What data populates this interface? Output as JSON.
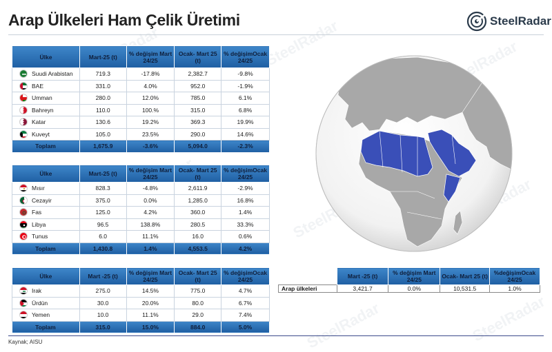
{
  "title": "Arap Ülkeleri Ham Çelik Üretimi",
  "brand": "SteelRadar",
  "watermark": "SteelRadar",
  "source": "Kaynak; AISU",
  "headers": {
    "country": "Ülke",
    "mart": "Mart-25 (t)",
    "change": "% değişim Mart 24/25",
    "ocak": "Ocak- Mart 25 (t)",
    "change_ocak": "% değişimOcak 24/25"
  },
  "table1": {
    "rows": [
      {
        "country": "Suudi Arabistan",
        "flag": "saudi-flag-icon",
        "mart": "719.3",
        "change": "-17.8%",
        "ocak": "2,382.7",
        "change_ocak": "-9.8%"
      },
      {
        "country": "BAE",
        "flag": "uae-flag-icon",
        "mart": "331.0",
        "change": "4.0%",
        "ocak": "952.0",
        "change_ocak": "-1.9%"
      },
      {
        "country": "Umman",
        "flag": "oman-flag-icon",
        "mart": "280.0",
        "change": "12.0%",
        "ocak": "785.0",
        "change_ocak": "6.1%"
      },
      {
        "country": "Bahreyn",
        "flag": "bahrain-flag-icon",
        "mart": "110.0",
        "change": "100.%",
        "ocak": "315.0",
        "change_ocak": "6.8%"
      },
      {
        "country": "Katar",
        "flag": "qatar-flag-icon",
        "mart": "130.6",
        "change": "19.2%",
        "ocak": "369.3",
        "change_ocak": "19.9%"
      },
      {
        "country": "Kuveyt",
        "flag": "kuwait-flag-icon",
        "mart": "105.0",
        "change": "23.5%",
        "ocak": "290.0",
        "change_ocak": "14.6%"
      }
    ],
    "total": {
      "country": "Toplam",
      "mart": "1,675.9",
      "change": "-3.6%",
      "ocak": "5,094.0",
      "change_ocak": "-2.3%"
    }
  },
  "table2": {
    "rows": [
      {
        "country": "Mısır",
        "flag": "egypt-flag-icon",
        "mart": "828.3",
        "change": "-4.8%",
        "ocak": "2,611.9",
        "change_ocak": "-2.9%"
      },
      {
        "country": "Cezayir",
        "flag": "algeria-flag-icon",
        "mart": "375.0",
        "change": "0.0%",
        "ocak": "1,285.0",
        "change_ocak": "16.8%"
      },
      {
        "country": "Fas",
        "flag": "morocco-flag-icon",
        "mart": "125.0",
        "change": "4.2%",
        "ocak": "360.0",
        "change_ocak": "1.4%"
      },
      {
        "country": "Libya",
        "flag": "libya-flag-icon",
        "mart": "96.5",
        "change": "138.8%",
        "ocak": "280.5",
        "change_ocak": "33.3%"
      },
      {
        "country": "Tunus",
        "flag": "tunisia-flag-icon",
        "mart": "6.0",
        "change": "11.1%",
        "ocak": "16.0",
        "change_ocak": "0.6%"
      }
    ],
    "total": {
      "country": "Toplam",
      "mart": "1,430.8",
      "change": "1.4%",
      "ocak": "4,553.5",
      "change_ocak": "4.2%"
    }
  },
  "table3": {
    "header_mart": "Mart -25 (t)",
    "rows": [
      {
        "country": "Irak",
        "flag": "iraq-flag-icon",
        "mart": "275.0",
        "change": "14.5%",
        "ocak": "775.0",
        "change_ocak": "4.7%"
      },
      {
        "country": "Ürdün",
        "flag": "jordan-flag-icon",
        "mart": "30.0",
        "change": "20.0%",
        "ocak": "80.0",
        "change_ocak": "6.7%"
      },
      {
        "country": "Yemen",
        "flag": "yemen-flag-icon",
        "mart": "10.0",
        "change": "11.1%",
        "ocak": "29.0",
        "change_ocak": "7.4%"
      }
    ],
    "total": {
      "country": "Toplam",
      "mart": "315.0",
      "change": "15.0%",
      "ocak": "884.0",
      "change_ocak": "5.0%"
    }
  },
  "summary": {
    "header_mart": "Mart -25 (t)",
    "header_change": "% değişim Mart 24/25",
    "header_ocak": "Ocak- Mart 25 (t)",
    "header_change_ocak": "%değişimOcak 24/25",
    "row": {
      "country": "Arap ülkeleri",
      "mart": "3,421.7",
      "change": "0.0%",
      "ocak": "10,531.5",
      "change_ocak": "1.0%"
    }
  },
  "colors": {
    "header_blue": "#2a6db5",
    "highlight_region": "#3a4fb8",
    "globe_sea": "#ffffff",
    "land": "#a8a8a8"
  }
}
